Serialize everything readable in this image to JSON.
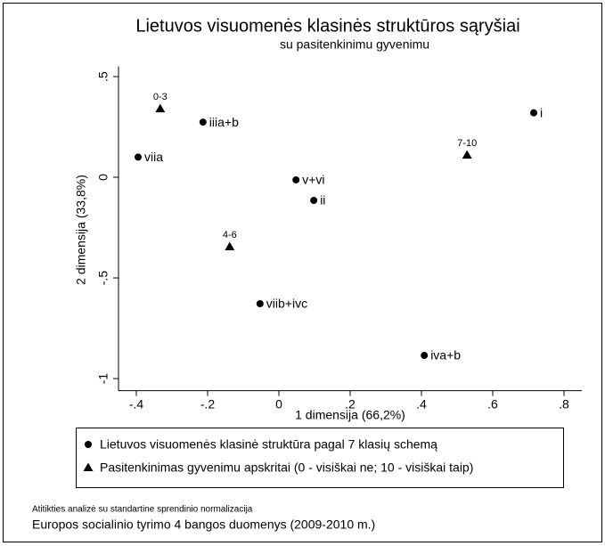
{
  "chart_data": {
    "type": "scatter",
    "title": "Lietuvos visuomenės klasinės struktūros sąryšiai",
    "subtitle": "su pasitenkinimu gyvenimu",
    "x_label": "1 dimensija (66,2%)",
    "y_label": "2 dimensija (33,8%)",
    "xlim": [
      -0.45,
      0.85
    ],
    "ylim": [
      -1.06,
      0.55
    ],
    "xticks": [
      {
        "value": -0.4,
        "label": "-.4"
      },
      {
        "value": -0.2,
        "label": "-.2"
      },
      0,
      {
        "value": 0.2,
        "label": ".2"
      },
      {
        "value": 0.4,
        "label": ".4"
      },
      {
        "value": 0.6,
        "label": ".6"
      },
      {
        "value": 0.8,
        "label": ".8"
      }
    ],
    "yticks": [
      {
        "value": 0.5,
        "label": ".5"
      },
      0,
      {
        "value": -0.5,
        "label": "-.5"
      },
      {
        "value": -1,
        "label": "-1"
      }
    ],
    "series": [
      {
        "name": "Lietuvos visuomenės klasinė struktūra pagal 7 klasių schemą",
        "marker": "circle",
        "color": "#000000",
        "labels": [
          "i",
          "iiia+b",
          "viia",
          "v+vi",
          "ii",
          "viib+ivc",
          "iva+b"
        ],
        "x": [
          0.715,
          -0.213,
          -0.395,
          0.048,
          0.098,
          -0.053,
          0.408
        ],
        "values": [
          0.32,
          0.274,
          0.1,
          -0.013,
          -0.115,
          -0.628,
          -0.885
        ]
      },
      {
        "name": "Pasitenkinimas gyvenimu apskritai (0 - visiškai ne; 10 - visiškai taip)",
        "marker": "triangle",
        "color": "#000000",
        "labels": [
          "0-3",
          "7-10",
          "4-6"
        ],
        "x": [
          -0.333,
          0.528,
          -0.138
        ],
        "values": [
          0.34,
          0.11,
          -0.345
        ]
      }
    ],
    "notes": [
      "Atitikties analizė su standartine sprendinio normalizacija",
      "Europos socialinio tyrimo 4 bangos duomenys (2009-2010 m.)"
    ]
  }
}
